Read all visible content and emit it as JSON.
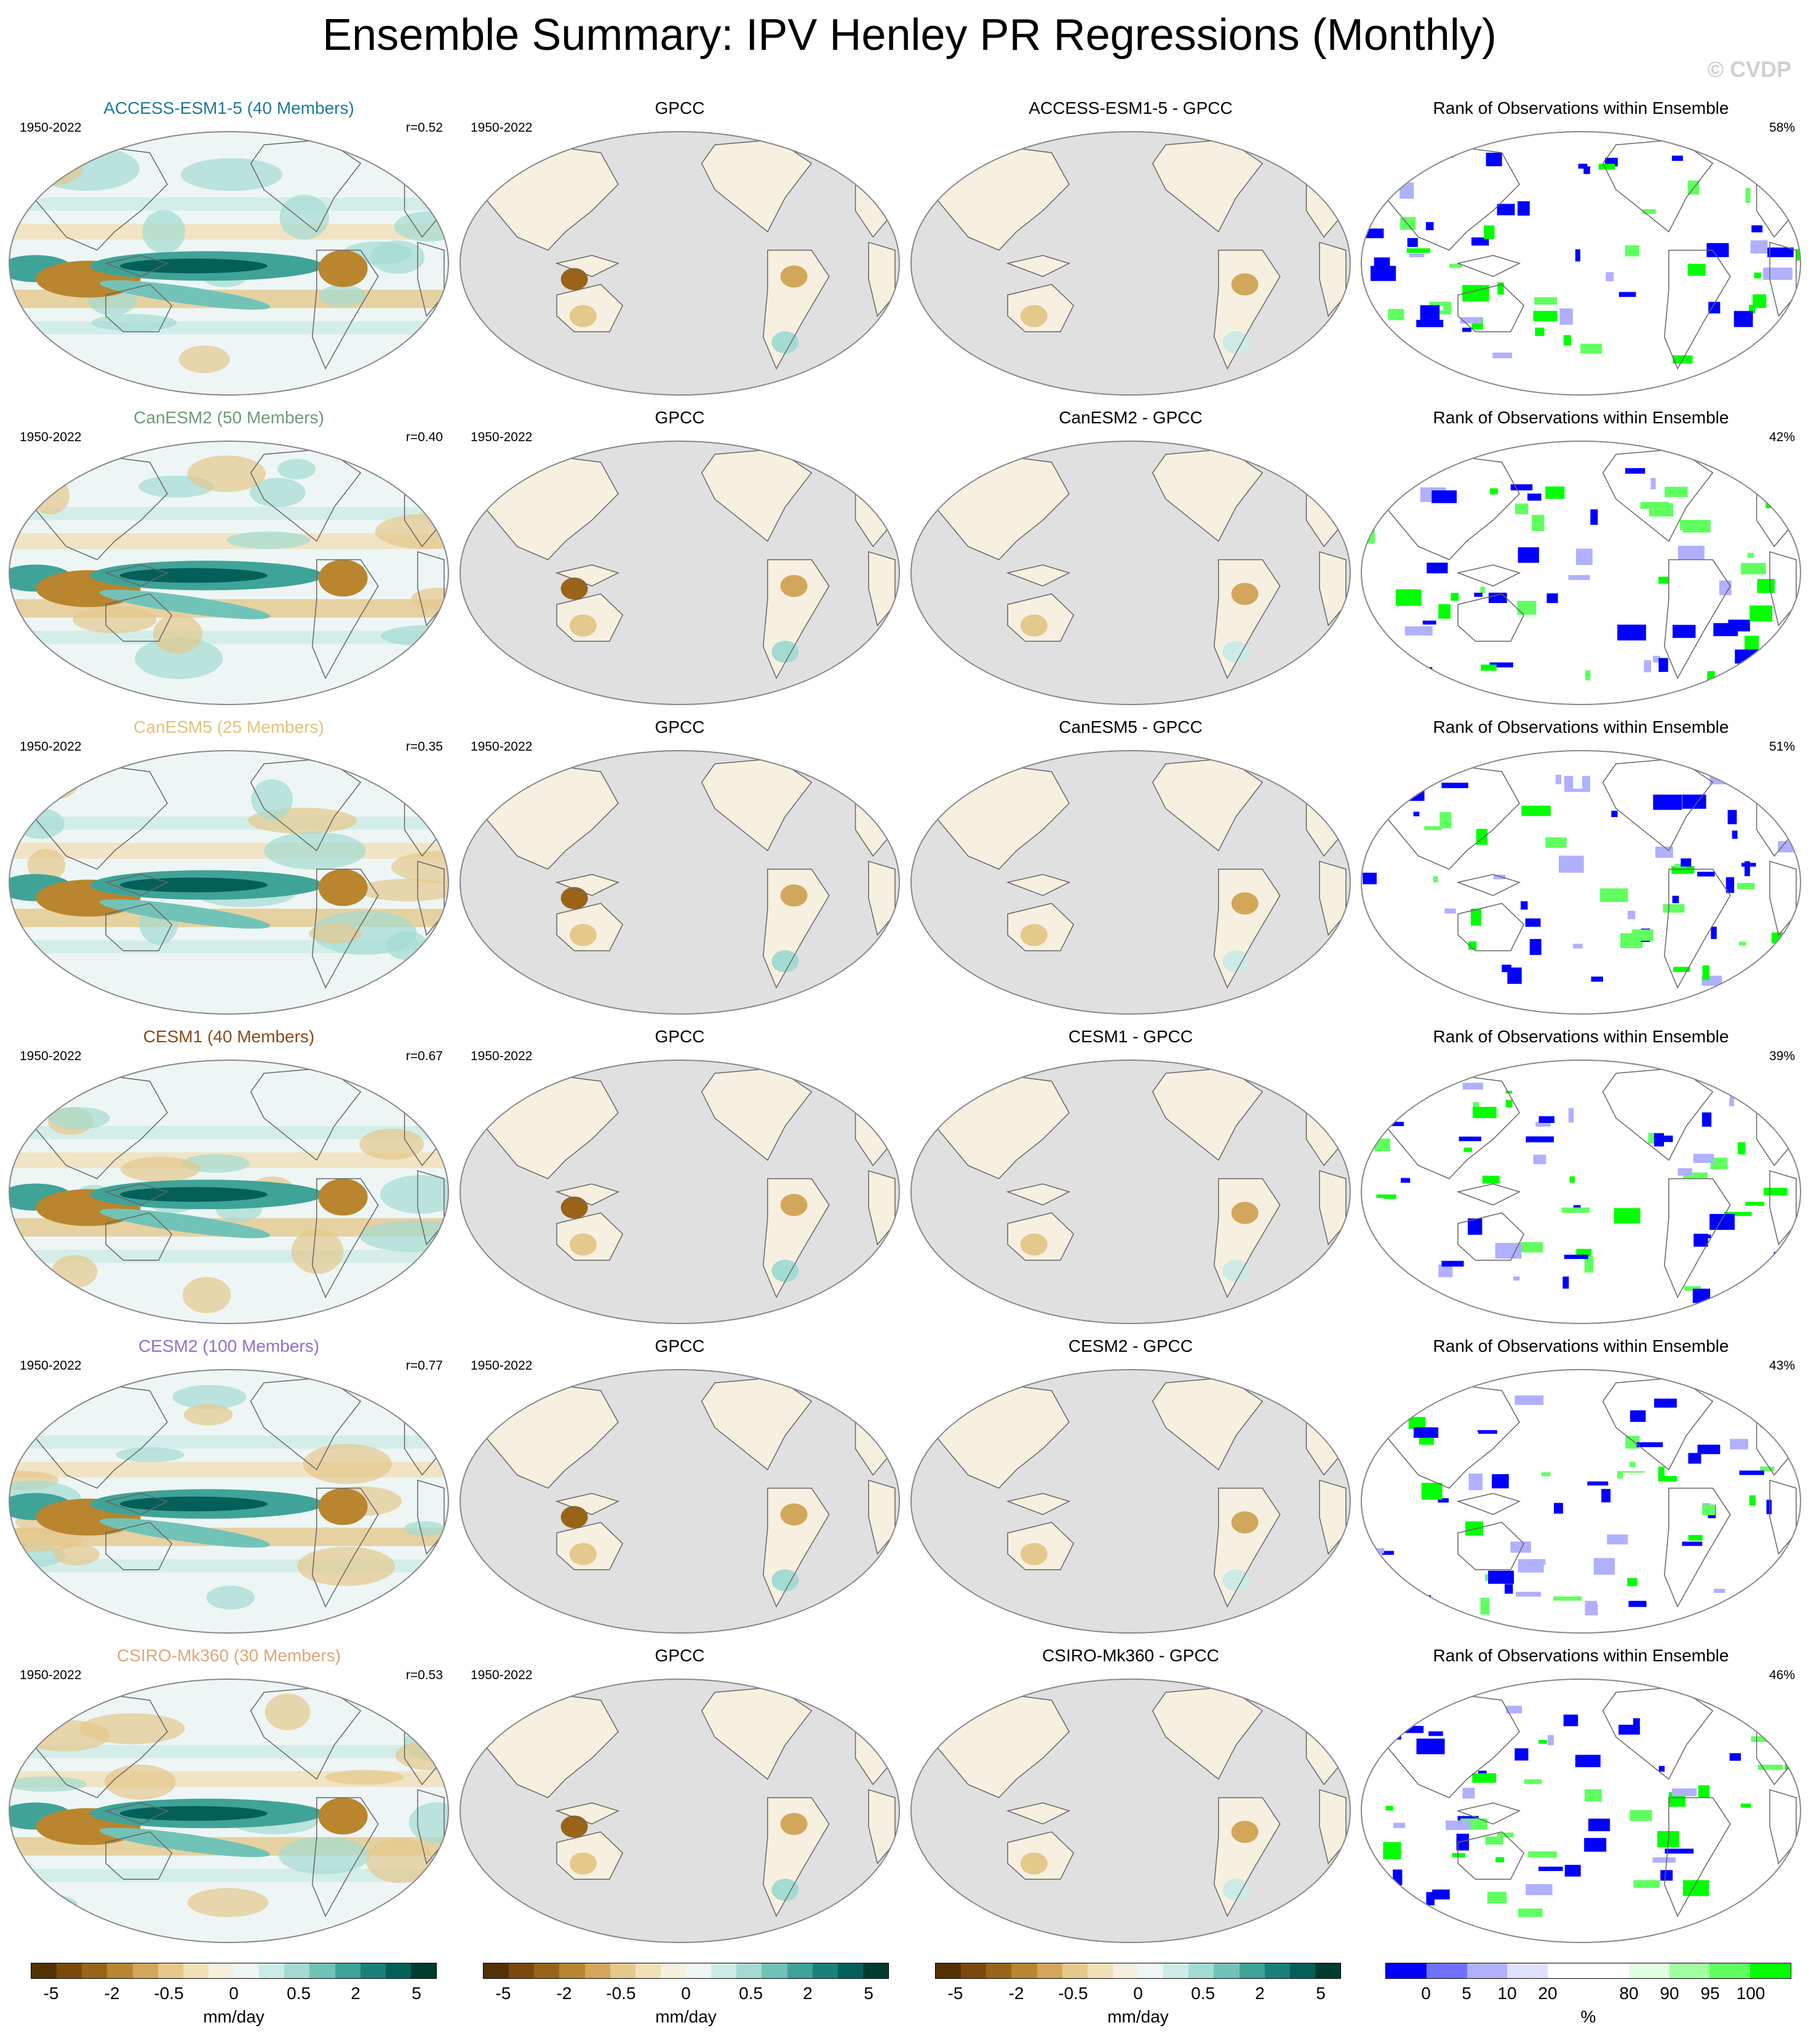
{
  "title": "Ensemble Summary: IPV Henley PR Regressions (Monthly)",
  "copyright": "© CVDP",
  "obs_name": "GPCC",
  "rank_title": "Rank of Observations within Ensemble",
  "period": "1950-2022",
  "chart_data": {
    "type": "heatmap",
    "columns": [
      "model ensemble mean",
      "observations",
      "model minus observations",
      "rank of observations within ensemble"
    ],
    "rows": [
      {
        "model": "ACCESS-ESM1-5 (40 Members)",
        "diff_title": "ACCESS-ESM1-5 - GPCC",
        "r": "r=0.52",
        "rank_pct": "58%",
        "color": "#1d7a9a"
      },
      {
        "model": "CanESM2 (50 Members)",
        "diff_title": "CanESM2 - GPCC",
        "r": "r=0.40",
        "rank_pct": "42%",
        "color": "#6f9a78"
      },
      {
        "model": "CanESM5 (25 Members)",
        "diff_title": "CanESM5 - GPCC",
        "r": "r=0.35",
        "rank_pct": "51%",
        "color": "#e2c27c"
      },
      {
        "model": "CESM1 (40 Members)",
        "diff_title": "CESM1 - GPCC",
        "r": "r=0.67",
        "rank_pct": "39%",
        "color": "#8a4a18"
      },
      {
        "model": "CESM2 (100 Members)",
        "diff_title": "CESM2 - GPCC",
        "r": "r=0.77",
        "rank_pct": "43%",
        "color": "#8f6fd4"
      },
      {
        "model": "CSIRO-Mk360 (30 Members)",
        "diff_title": "CSIRO-Mk360 - GPCC",
        "r": "r=0.53",
        "rank_pct": "46%",
        "color": "#dca878"
      }
    ],
    "pr_colorbar": {
      "colors": [
        "#543005",
        "#7a4a0d",
        "#9a6418",
        "#b9852e",
        "#d2a75b",
        "#e4c88c",
        "#f0e0b8",
        "#f7f0e0",
        "#edf6f5",
        "#cdebe6",
        "#a3dbd2",
        "#72c3b7",
        "#40a398",
        "#18827a",
        "#036059",
        "#003c30"
      ],
      "tick_labels": [
        "-5",
        "-2",
        "-0.5",
        "0",
        "0.5",
        "2",
        "5"
      ],
      "units": "mm/day"
    },
    "rank_colorbar": {
      "colors": [
        "#0000ff",
        "#7070ff",
        "#b0b0ff",
        "#e0e0ff",
        "#ffffff",
        "#ffffff",
        "#e0ffe0",
        "#a0ffa0",
        "#60ff60",
        "#00ff00"
      ],
      "tick_labels": [
        "0",
        "5",
        "10",
        "20",
        "80",
        "90",
        "95",
        "100"
      ],
      "units": "%"
    }
  }
}
